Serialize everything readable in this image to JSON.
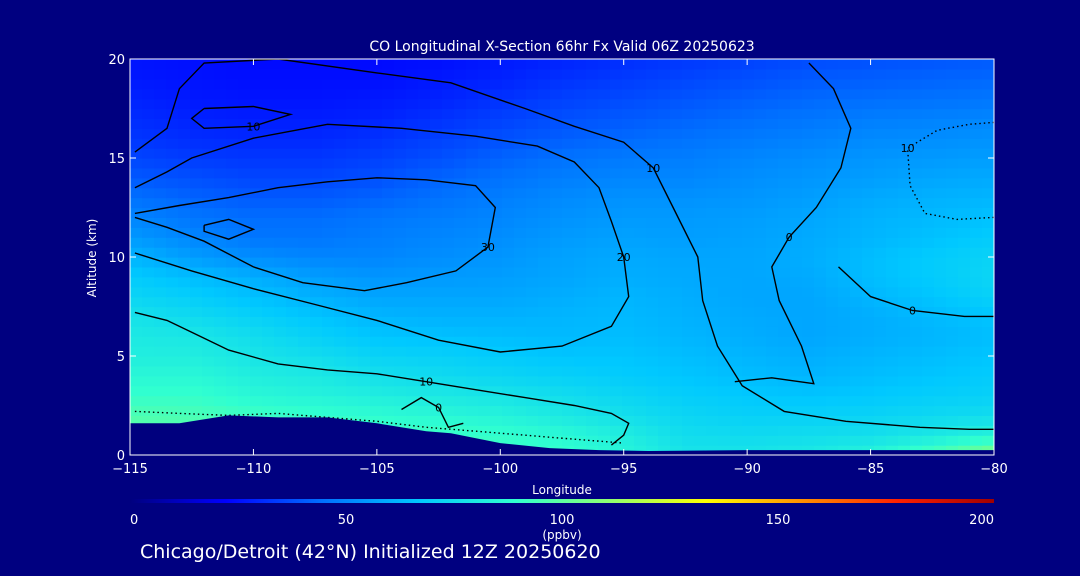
{
  "chart_data": {
    "type": "heatmap",
    "title": "CO Longitudinal X-Section 66hr  Fx Valid 06Z 20250623",
    "xlabel": "Longitude",
    "ylabel": "Altitude (km)",
    "xlim": [
      -115,
      -80
    ],
    "ylim": [
      0,
      20
    ],
    "x_ticks": [
      -115,
      -110,
      -105,
      -100,
      -95,
      -90,
      -85,
      -80
    ],
    "x_tick_labels": [
      "−115",
      "−110",
      "−105",
      "−100",
      "−95",
      "−90",
      "−85",
      "−80"
    ],
    "y_ticks": [
      0,
      5,
      10,
      15,
      20
    ],
    "y_tick_labels": [
      "0",
      "5",
      "10",
      "15",
      "20"
    ],
    "colorbar": {
      "min": 0,
      "max": 200,
      "ticks": [
        0,
        50,
        100,
        150,
        200
      ],
      "tick_labels": [
        "0",
        "50",
        "100",
        "150",
        "200"
      ],
      "unit": "(ppbv)",
      "colors": [
        "#00007e",
        "#0000ff",
        "#0070ff",
        "#00c8ff",
        "#30ffd0",
        "#90ff70",
        "#ffff00",
        "#ff9000",
        "#ff2000",
        "#a00000"
      ]
    },
    "terrain": [
      [
        -115,
        1.6
      ],
      [
        -113,
        1.6
      ],
      [
        -111,
        2.0
      ],
      [
        -109,
        1.9
      ],
      [
        -107,
        1.9
      ],
      [
        -105,
        1.6
      ],
      [
        -103,
        1.2
      ],
      [
        -102,
        1.1
      ],
      [
        -100,
        0.6
      ],
      [
        -98,
        0.35
      ],
      [
        -96,
        0.25
      ],
      [
        -94,
        0.2
      ],
      [
        -90,
        0.25
      ],
      [
        -85,
        0.25
      ],
      [
        -80,
        0.25
      ]
    ],
    "co_field": {
      "x": [
        -115,
        -112.5,
        -110,
        -107.5,
        -105,
        -102.5,
        -100,
        -97.5,
        -95,
        -92.5,
        -90,
        -87.5,
        -85,
        -82.5,
        -80
      ],
      "y": [
        0,
        1,
        2,
        3,
        4,
        5,
        6,
        7,
        8,
        9,
        10,
        11,
        12,
        13,
        14,
        15,
        16,
        17,
        18,
        19,
        20
      ],
      "values_ppbv": [
        [
          100,
          100,
          100,
          95,
          95,
          93,
          92,
          90,
          85,
          78,
          78,
          80,
          85,
          95,
          108
        ],
        [
          100,
          98,
          96,
          95,
          93,
          92,
          90,
          87,
          82,
          75,
          74,
          75,
          76,
          80,
          85
        ],
        [
          96,
          95,
          92,
          90,
          88,
          86,
          84,
          80,
          76,
          72,
          70,
          70,
          71,
          73,
          75
        ],
        [
          90,
          90,
          86,
          84,
          82,
          80,
          78,
          75,
          72,
          69,
          67,
          66,
          67,
          69,
          70
        ],
        [
          86,
          86,
          82,
          80,
          76,
          74,
          72,
          70,
          68,
          66,
          64,
          62,
          64,
          66,
          68
        ],
        [
          82,
          82,
          78,
          75,
          71,
          70,
          68,
          66,
          66,
          64,
          62,
          60,
          62,
          64,
          66
        ],
        [
          80,
          79,
          75,
          70,
          66,
          65,
          64,
          63,
          64,
          62,
          60,
          58,
          60,
          62,
          64
        ],
        [
          77,
          74,
          70,
          66,
          62,
          61,
          61,
          62,
          63,
          61,
          59,
          58,
          60,
          63,
          66
        ],
        [
          72,
          69,
          65,
          61,
          58,
          58,
          58,
          60,
          62,
          60,
          58,
          58,
          62,
          66,
          70
        ],
        [
          68,
          64,
          60,
          56,
          54,
          55,
          56,
          58,
          60,
          59,
          58,
          59,
          64,
          68,
          72
        ],
        [
          62,
          56,
          52,
          50,
          50,
          52,
          54,
          57,
          59,
          58,
          58,
          60,
          64,
          68,
          71
        ],
        [
          55,
          50,
          46,
          46,
          48,
          50,
          52,
          55,
          57,
          56,
          57,
          59,
          62,
          65,
          68
        ],
        [
          50,
          46,
          44,
          44,
          46,
          48,
          50,
          53,
          55,
          55,
          56,
          58,
          61,
          63,
          65
        ],
        [
          45,
          42,
          40,
          40,
          42,
          45,
          48,
          51,
          53,
          53,
          54,
          56,
          59,
          61,
          62
        ],
        [
          40,
          38,
          36,
          36,
          38,
          42,
          45,
          48,
          50,
          50,
          52,
          54,
          56,
          58,
          59
        ],
        [
          36,
          34,
          33,
          33,
          35,
          38,
          42,
          45,
          47,
          48,
          50,
          52,
          54,
          55,
          56
        ],
        [
          33,
          31,
          30,
          30,
          32,
          35,
          38,
          41,
          43,
          45,
          47,
          49,
          51,
          52,
          53
        ],
        [
          31,
          29,
          28,
          28,
          29,
          32,
          35,
          38,
          40,
          42,
          44,
          46,
          48,
          49,
          50
        ],
        [
          29,
          27,
          26,
          26,
          27,
          29,
          32,
          35,
          37,
          39,
          41,
          43,
          44,
          45,
          46
        ],
        [
          27,
          26,
          25,
          25,
          25,
          27,
          29,
          32,
          34,
          36,
          38,
          40,
          41,
          42,
          43
        ],
        [
          26,
          25,
          24,
          24,
          24,
          25,
          27,
          29,
          31,
          33,
          35,
          37,
          38,
          39,
          40
        ]
      ]
    },
    "contours": [
      {
        "label": "10",
        "line": "solid",
        "points": [
          [
            -112,
            17.5
          ],
          [
            -110,
            17.6
          ],
          [
            -108.5,
            17.2
          ],
          [
            -110,
            16.6
          ],
          [
            -112,
            16.5
          ],
          [
            -112.5,
            17.0
          ],
          [
            -112,
            17.5
          ]
        ]
      },
      {
        "label": "10",
        "line": "solid",
        "points": [
          [
            -114.8,
            15.3
          ],
          [
            -113.5,
            16.5
          ],
          [
            -113,
            18.5
          ],
          [
            -112,
            19.8
          ],
          [
            -109,
            20
          ],
          [
            -105,
            19.3
          ],
          [
            -102,
            18.8
          ],
          [
            -99,
            17.5
          ],
          [
            -97,
            16.6
          ],
          [
            -95,
            15.8
          ],
          [
            -93.8,
            14.5
          ],
          [
            -93,
            12.5
          ],
          [
            -92,
            10
          ],
          [
            -91.8,
            7.8
          ],
          [
            -91.2,
            5.5
          ],
          [
            -90.2,
            3.5
          ],
          [
            -88.5,
            2.2
          ],
          [
            -86,
            1.7
          ],
          [
            -83,
            1.4
          ],
          [
            -81,
            1.3
          ],
          [
            -80,
            1.3
          ]
        ]
      },
      {
        "label": "20",
        "line": "solid",
        "points": [
          [
            -114.8,
            13.5
          ],
          [
            -113.5,
            14.3
          ],
          [
            -112.5,
            15
          ],
          [
            -110,
            16.0
          ],
          [
            -107,
            16.7
          ],
          [
            -104,
            16.5
          ],
          [
            -101,
            16.1
          ],
          [
            -98.5,
            15.6
          ],
          [
            -97,
            14.8
          ],
          [
            -96,
            13.5
          ],
          [
            -95.5,
            11.8
          ],
          [
            -95,
            10
          ],
          [
            -94.8,
            8
          ],
          [
            -95.5,
            6.5
          ],
          [
            -97.5,
            5.5
          ],
          [
            -100,
            5.2
          ],
          [
            -102.5,
            5.8
          ],
          [
            -105,
            6.8
          ],
          [
            -107.5,
            7.6
          ],
          [
            -110,
            8.4
          ],
          [
            -112.5,
            9.3
          ],
          [
            -114.8,
            10.2
          ]
        ]
      },
      {
        "label": "30",
        "line": "solid",
        "points": [
          [
            -114.8,
            12.2
          ],
          [
            -113,
            12.6
          ],
          [
            -111,
            13.0
          ],
          [
            -109,
            13.5
          ],
          [
            -107,
            13.8
          ],
          [
            -105,
            14.0
          ],
          [
            -103,
            13.9
          ],
          [
            -101,
            13.6
          ],
          [
            -100.2,
            12.5
          ],
          [
            -100.5,
            10.5
          ],
          [
            -101.8,
            9.3
          ],
          [
            -103.8,
            8.7
          ],
          [
            -105.5,
            8.3
          ],
          [
            -108,
            8.7
          ],
          [
            -110,
            9.5
          ],
          [
            -112,
            10.8
          ],
          [
            -113.5,
            11.5
          ],
          [
            -114.8,
            12.0
          ]
        ]
      },
      {
        "label": "",
        "line": "solid",
        "points": [
          [
            -112,
            11.6
          ],
          [
            -111,
            11.9
          ],
          [
            -110,
            11.4
          ],
          [
            -111,
            10.9
          ],
          [
            -112,
            11.3
          ],
          [
            -112,
            11.6
          ]
        ]
      },
      {
        "label": "10",
        "line": "solid",
        "points": [
          [
            -114.8,
            7.2
          ],
          [
            -113.5,
            6.8
          ],
          [
            -112.5,
            6.2
          ],
          [
            -111,
            5.3
          ],
          [
            -109,
            4.6
          ],
          [
            -107,
            4.3
          ],
          [
            -105,
            4.1
          ],
          [
            -103,
            3.7
          ],
          [
            -101,
            3.3
          ],
          [
            -99,
            2.9
          ],
          [
            -97,
            2.5
          ],
          [
            -95.5,
            2.1
          ],
          [
            -94.8,
            1.6
          ],
          [
            -95,
            1.0
          ],
          [
            -95.5,
            0.5
          ]
        ]
      },
      {
        "label": "0",
        "line": "solid",
        "points": [
          [
            -90.5,
            3.7
          ],
          [
            -89,
            3.9
          ],
          [
            -87.3,
            3.6
          ],
          [
            -87.8,
            5.5
          ],
          [
            -88.7,
            7.8
          ],
          [
            -89,
            9.5
          ],
          [
            -88.3,
            11
          ],
          [
            -87.2,
            12.5
          ],
          [
            -86.2,
            14.5
          ],
          [
            -85.8,
            16.5
          ],
          [
            -86.5,
            18.5
          ],
          [
            -87.5,
            19.8
          ]
        ]
      },
      {
        "label": "0",
        "line": "solid",
        "points": [
          [
            -86.3,
            9.5
          ],
          [
            -85,
            8
          ],
          [
            -83.3,
            7.3
          ],
          [
            -81.2,
            7.0
          ],
          [
            -80,
            7.0
          ]
        ]
      },
      {
        "label": "10",
        "line": "dotted",
        "points": [
          [
            -80,
            12.0
          ],
          [
            -81.5,
            11.9
          ],
          [
            -82.8,
            12.2
          ],
          [
            -83.4,
            13.6
          ],
          [
            -83.5,
            15.5
          ],
          [
            -82.3,
            16.4
          ],
          [
            -81,
            16.7
          ],
          [
            -80,
            16.8
          ]
        ]
      },
      {
        "label": "",
        "line": "dotted",
        "points": [
          [
            -114.8,
            2.2
          ],
          [
            -113,
            2.1
          ],
          [
            -111,
            2.0
          ],
          [
            -109,
            2.1
          ],
          [
            -107,
            1.9
          ],
          [
            -105,
            1.7
          ],
          [
            -103,
            1.4
          ],
          [
            -101,
            1.2
          ],
          [
            -99,
            1.0
          ],
          [
            -97,
            0.8
          ],
          [
            -95,
            0.6
          ]
        ]
      },
      {
        "label": "0",
        "line": "solid",
        "points": [
          [
            -104,
            2.3
          ],
          [
            -103.2,
            2.9
          ],
          [
            -102.5,
            2.4
          ],
          [
            -102.1,
            1.4
          ],
          [
            -101.5,
            1.6
          ]
        ]
      }
    ],
    "grid": false,
    "legend": "colorbar-bottom"
  },
  "caption": "Chicago/Detroit (42°N) Initialized 12Z 20250620"
}
